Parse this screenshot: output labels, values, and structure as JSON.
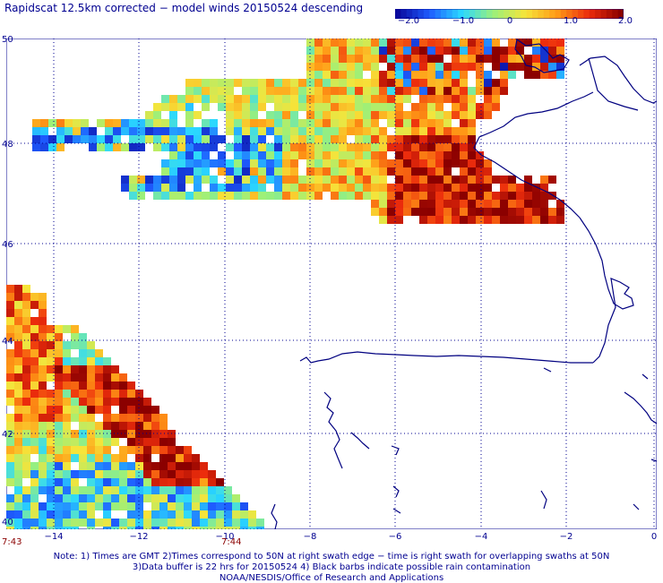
{
  "title": "Rapidscat 12.5km corrected − model winds 20150524 descending",
  "colorbar": {
    "ticks": [
      "−2.0",
      "−1.0",
      "0",
      "1.0",
      "2.0"
    ],
    "values": [
      -2.0,
      -1.0,
      0,
      1.0,
      2.0
    ],
    "colors": [
      "#0a0a9e",
      "#1e5cff",
      "#2ad8ff",
      "#9bf07a",
      "#f6e43a",
      "#ff9a16",
      "#ec2c0c",
      "#8b0000"
    ]
  },
  "map": {
    "lat_labels": [
      "50",
      "48",
      "46",
      "44",
      "42",
      "40"
    ],
    "lon_labels": [
      "−14",
      "−12",
      "−10",
      "−8",
      "−6",
      "−4",
      "−2",
      "0"
    ],
    "lat_range": [
      40,
      50
    ],
    "lon_range": [
      -15.3,
      -0.0
    ],
    "time_labels": [
      "7:43",
      "7:44"
    ],
    "coast_color": "#000080",
    "grid_color": "#000090"
  },
  "notes": {
    "line1": "Note: 1) Times are GMT 2)Times correspond to 50N at right swath edge − time is right swath for overlapping swaths at 50N",
    "line2": "3)Data buffer is 22 hrs for 20150524 4) Black barbs indicate possible rain contamination",
    "line3": "NOAA/NESDIS/Office of Research and Applications"
  }
}
